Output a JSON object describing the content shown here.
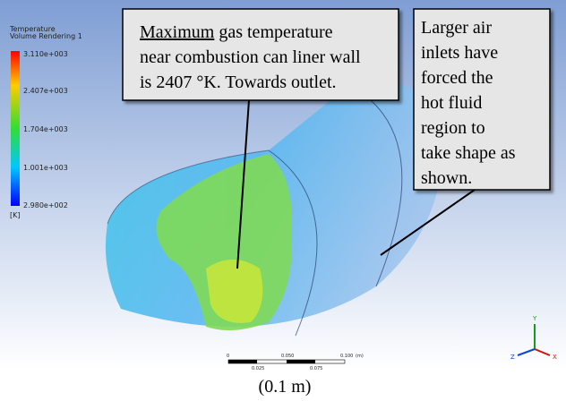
{
  "legend": {
    "title": "Temperature",
    "subtitle": "Volume Rendering 1",
    "labels": [
      "3.110e+003",
      "2.407e+003",
      "1.704e+003",
      "1.001e+003",
      "2.980e+002"
    ],
    "unit": "[K]"
  },
  "callout_left": {
    "underlined": "Maximum",
    "first_rest": "gas temperature",
    "lines": [
      "near combustion can liner wall",
      "is 2407 °K. Towards outlet."
    ]
  },
  "callout_right": {
    "lines": [
      "Larger air",
      "inlets have",
      "forced the",
      "hot fluid",
      "region to",
      "take shape as",
      "shown."
    ]
  },
  "scale_bar": {
    "top": [
      "0",
      "0.050",
      "0.100"
    ],
    "unit": "(m)",
    "bottom": [
      "0.025",
      "0.075"
    ]
  },
  "triad": {
    "y": "Y",
    "x": "X",
    "z": "Z"
  },
  "caption": "(0.1 m)"
}
